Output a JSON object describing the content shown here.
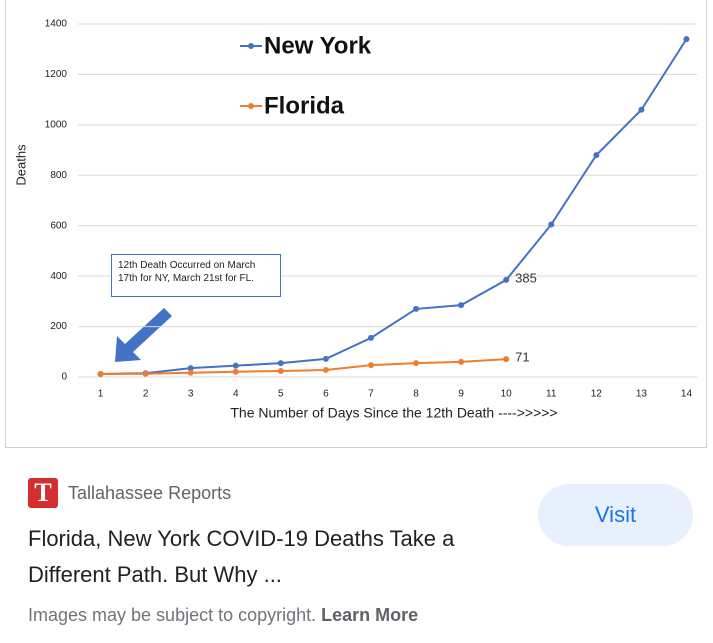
{
  "chart_data": {
    "type": "line",
    "x": [
      1,
      2,
      3,
      4,
      5,
      6,
      7,
      8,
      9,
      10,
      11,
      12,
      13,
      14
    ],
    "xlim": [
      0.5,
      14.5
    ],
    "xticks": [
      1,
      2,
      3,
      4,
      5,
      6,
      7,
      8,
      9,
      10,
      11,
      12,
      13,
      14
    ],
    "ylim": [
      0,
      1400
    ],
    "yticks": [
      0,
      200,
      400,
      600,
      800,
      1000,
      1200,
      1400
    ],
    "grid": true,
    "ylabel": "Deaths",
    "xlabel": "The Number of Days Since the 12th Death ---->>>>>",
    "annotation": "12th Death Occurred on March 17th for NY, March 21st for FL.",
    "series": [
      {
        "name": "New York",
        "color": "#4472c4",
        "values": [
          12,
          15,
          35,
          45,
          55,
          72,
          155,
          270,
          285,
          385,
          605,
          880,
          1060,
          1340
        ],
        "value_labels": [
          null,
          null,
          null,
          null,
          null,
          null,
          null,
          null,
          null,
          "385",
          null,
          null,
          null,
          null
        ]
      },
      {
        "name": "Florida",
        "color": "#ed7d31",
        "values": [
          12,
          13,
          17,
          21,
          24,
          28,
          47,
          55,
          60,
          71,
          null,
          null,
          null,
          null
        ],
        "value_labels": [
          null,
          null,
          null,
          null,
          null,
          null,
          null,
          null,
          null,
          "71",
          null,
          null,
          null,
          null
        ]
      }
    ]
  },
  "result": {
    "logo": "T",
    "source": "Tallahassee Reports",
    "headline": "Florida, New York COVID-19 Deaths Take a Different Path. But Why ...",
    "button": "Visit",
    "notice": "Images may be subject to copyright.",
    "link": "Learn More"
  }
}
